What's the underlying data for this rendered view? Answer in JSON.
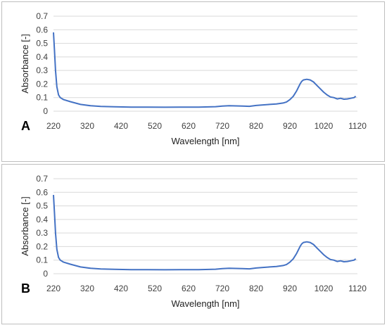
{
  "chart_data": [
    {
      "type": "line",
      "panel_label": "A",
      "xlabel": "Wavelength [nm]",
      "ylabel": "Absorbance [-]",
      "xlim": [
        220,
        1120
      ],
      "ylim": [
        0,
        0.7
      ],
      "x_ticks": [
        "220",
        "320",
        "420",
        "520",
        "620",
        "720",
        "820",
        "920",
        "1020",
        "1120"
      ],
      "y_ticks": [
        "0",
        "0.1",
        "0.2",
        "0.3",
        "0.4",
        "0.5",
        "0.6",
        "0.7"
      ],
      "grid": "horizontal",
      "colors": {
        "series": "#4472c4"
      },
      "series": [
        {
          "x": [
            220,
            223,
            226,
            230,
            235,
            240,
            250,
            270,
            300,
            330,
            360,
            400,
            450,
            500,
            550,
            600,
            650,
            700,
            720,
            740,
            760,
            780,
            800,
            820,
            840,
            860,
            880,
            900,
            910,
            920,
            930,
            940,
            950,
            955,
            960,
            970,
            980,
            990,
            1000,
            1010,
            1020,
            1030,
            1040,
            1050,
            1060,
            1070,
            1080,
            1090,
            1100,
            1110,
            1115
          ],
          "y": [
            0.58,
            0.45,
            0.3,
            0.18,
            0.12,
            0.1,
            0.085,
            0.07,
            0.05,
            0.04,
            0.035,
            0.032,
            0.03,
            0.03,
            0.029,
            0.03,
            0.03,
            0.033,
            0.038,
            0.04,
            0.039,
            0.038,
            0.036,
            0.042,
            0.046,
            0.05,
            0.053,
            0.06,
            0.068,
            0.085,
            0.11,
            0.15,
            0.2,
            0.22,
            0.23,
            0.235,
            0.23,
            0.215,
            0.19,
            0.165,
            0.14,
            0.12,
            0.105,
            0.1,
            0.09,
            0.095,
            0.088,
            0.09,
            0.095,
            0.1,
            0.11
          ]
        }
      ]
    },
    {
      "type": "line",
      "panel_label": "B",
      "xlabel": "Wavelength [nm]",
      "ylabel": "Absorbance [-]",
      "xlim": [
        220,
        1120
      ],
      "ylim": [
        0,
        0.7
      ],
      "x_ticks": [
        "220",
        "320",
        "420",
        "520",
        "620",
        "720",
        "820",
        "920",
        "1020",
        "1120"
      ],
      "y_ticks": [
        "0",
        "0.1",
        "0.2",
        "0.3",
        "0.4",
        "0.5",
        "0.6",
        "0.7"
      ],
      "grid": "horizontal",
      "colors": {
        "series": "#4472c4"
      },
      "series": [
        {
          "x": [
            220,
            223,
            226,
            230,
            235,
            240,
            250,
            270,
            300,
            330,
            360,
            400,
            450,
            500,
            550,
            600,
            650,
            700,
            720,
            740,
            760,
            780,
            800,
            820,
            840,
            860,
            880,
            900,
            910,
            920,
            930,
            940,
            950,
            955,
            960,
            970,
            980,
            990,
            1000,
            1010,
            1020,
            1030,
            1040,
            1050,
            1060,
            1070,
            1080,
            1090,
            1100,
            1110,
            1115
          ],
          "y": [
            0.58,
            0.45,
            0.3,
            0.18,
            0.12,
            0.1,
            0.085,
            0.07,
            0.05,
            0.04,
            0.035,
            0.032,
            0.03,
            0.03,
            0.029,
            0.03,
            0.03,
            0.033,
            0.038,
            0.04,
            0.039,
            0.038,
            0.036,
            0.042,
            0.046,
            0.05,
            0.053,
            0.06,
            0.068,
            0.085,
            0.11,
            0.15,
            0.2,
            0.22,
            0.23,
            0.235,
            0.23,
            0.215,
            0.19,
            0.165,
            0.14,
            0.12,
            0.105,
            0.1,
            0.09,
            0.095,
            0.088,
            0.09,
            0.095,
            0.1,
            0.11
          ]
        }
      ]
    }
  ]
}
